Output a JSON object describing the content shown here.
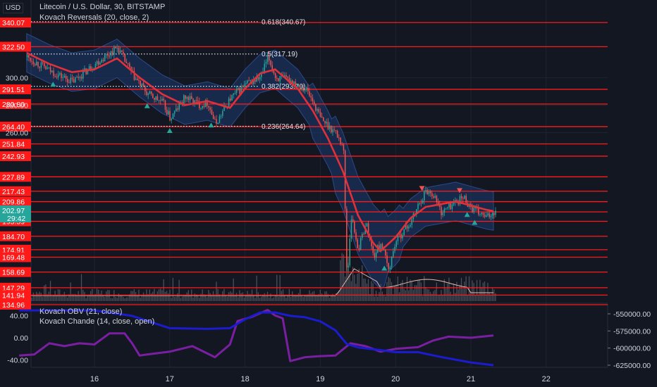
{
  "header": {
    "currency_button": "USD",
    "title": "Litecoin / U.S. Dollar, 30, BITSTAMP",
    "indicator": "Kovach Reversals (20, close, 2)"
  },
  "lower_pane": {
    "indicator_1": "Kovach OBV (21, close)",
    "indicator_2": "Kovach Chande (14, close, open)"
  },
  "colors": {
    "background": "#131722",
    "price_line": "#e0313b",
    "band_fill": "#1e3a6e",
    "candle_up": "#26a69a",
    "candle_down": "#ef5350",
    "obv_line": "#1c1ccf",
    "chande_line": "#7b1fa2",
    "volume": "#4a4f5a",
    "current_price": "#26a69a"
  },
  "chart_data": [
    {
      "type": "candlestick",
      "title": "Litecoin / U.S. Dollar, 30, BITSTAMP",
      "x_tick_labels": [
        "16",
        "17",
        "18",
        "19",
        "20",
        "21",
        "22"
      ],
      "y_tick_labels": [
        "300.00",
        "280.00",
        "260.00"
      ],
      "horizontal_levels": [
        "340.07",
        "322.50",
        "291.51",
        "280.80",
        "264.40",
        "251.84",
        "242.93",
        "227.89",
        "217.43",
        "209.86",
        "202.41",
        "195.59",
        "184.70",
        "174.91",
        "169.48",
        "158.69",
        "147.29",
        "141.94",
        "134.96"
      ],
      "current_price": "202.97",
      "countdown": "29:42",
      "fib_levels": [
        {
          "label": "0.618(340.67)",
          "price": 340.67
        },
        {
          "label": "0.5(317.19)",
          "price": 317.19
        },
        {
          "label": "0.382(293.70)",
          "price": 293.7
        },
        {
          "label": "0.236(264.64)",
          "price": 264.64
        }
      ],
      "price_path": {
        "day": [
          15.1,
          15.4,
          15.7,
          16.0,
          16.2,
          16.3,
          16.5,
          16.7,
          16.9,
          17.0,
          17.2,
          17.4,
          17.5,
          17.6,
          17.8,
          18.0,
          18.2,
          18.3,
          18.4,
          18.6,
          18.8,
          18.9,
          19.0,
          19.2,
          19.3,
          19.35,
          19.4,
          19.5,
          19.6,
          19.7,
          19.8,
          19.9,
          20.0,
          20.2,
          20.3,
          20.4,
          20.5,
          20.6,
          20.8,
          20.9,
          21.0,
          21.2,
          21.3
        ],
        "close": [
          315,
          305,
          297,
          310,
          318,
          322,
          302,
          288,
          282,
          270,
          286,
          280,
          282,
          266,
          285,
          295,
          300,
          315,
          300,
          298,
          292,
          282,
          270,
          260,
          250,
          150,
          200,
          175,
          195,
          170,
          180,
          160,
          182,
          195,
          208,
          218,
          215,
          202,
          210,
          213,
          205,
          198,
          202.97
        ]
      },
      "kovach_line": {
        "day": [
          15.1,
          15.4,
          15.7,
          16.0,
          16.3,
          16.6,
          16.9,
          17.2,
          17.5,
          17.8,
          18.0,
          18.2,
          18.4,
          18.7,
          18.9,
          19.1,
          19.3,
          19.5,
          19.7,
          19.8,
          20.0,
          20.2,
          20.4,
          20.6,
          20.8,
          21.0,
          21.2,
          21.3
        ],
        "value": [
          318,
          310,
          304,
          306,
          314,
          300,
          288,
          280,
          283,
          278,
          292,
          303,
          306,
          292,
          276,
          256,
          232,
          200,
          180,
          174,
          184,
          198,
          206,
          208,
          210,
          207,
          204,
          203
        ]
      },
      "reversal_markers_up_day": [
        15.45,
        16.7,
        17.0,
        17.55,
        19.85,
        20.95,
        21.05
      ],
      "reversal_markers_down_day": [
        20.35,
        20.85
      ]
    },
    {
      "type": "line",
      "title": "Kovach OBV / Kovach Chande",
      "left_tick_labels": [
        "40.00",
        "0.00",
        "-40.00"
      ],
      "right_tick_labels": [
        "-550000.00",
        "-575000.00",
        "-600000.00",
        "-625000.00"
      ],
      "series": [
        {
          "name": "Kovach OBV (21, close)",
          "axis": "right",
          "x": [
            15.0,
            16.0,
            16.5,
            17.0,
            17.5,
            17.8,
            18.0,
            18.2,
            18.4,
            18.6,
            18.8,
            19.0,
            19.2,
            19.35,
            19.5,
            19.8,
            20.0,
            20.3,
            20.6,
            21.0,
            21.3
          ],
          "values": [
            -545000,
            -545000,
            -553000,
            -571000,
            -572000,
            -571000,
            -558000,
            -548000,
            -548000,
            -553000,
            -555000,
            -561000,
            -574000,
            -594000,
            -599000,
            -603000,
            -606000,
            -606000,
            -613000,
            -621000,
            -625000
          ]
        },
        {
          "name": "Kovach Chande (14, close, open)",
          "axis": "left",
          "x": [
            15.0,
            15.2,
            15.4,
            15.6,
            15.8,
            16.0,
            16.2,
            16.4,
            16.5,
            16.6,
            16.7,
            17.0,
            17.3,
            17.6,
            17.8,
            17.9,
            18.1,
            18.3,
            18.4,
            18.5,
            18.6,
            18.8,
            19.0,
            19.2,
            19.4,
            19.6,
            19.8,
            20.0,
            20.3,
            20.5,
            20.7,
            21.0,
            21.3
          ],
          "values": [
            -32,
            -30,
            -10,
            -15,
            -10,
            -12,
            8,
            8,
            -10,
            -32,
            -30,
            -25,
            -15,
            -35,
            -12,
            30,
            38,
            50,
            40,
            35,
            -42,
            -35,
            -33,
            -32,
            -10,
            -15,
            -25,
            -20,
            -17,
            -5,
            2,
            0,
            4
          ]
        }
      ]
    }
  ]
}
